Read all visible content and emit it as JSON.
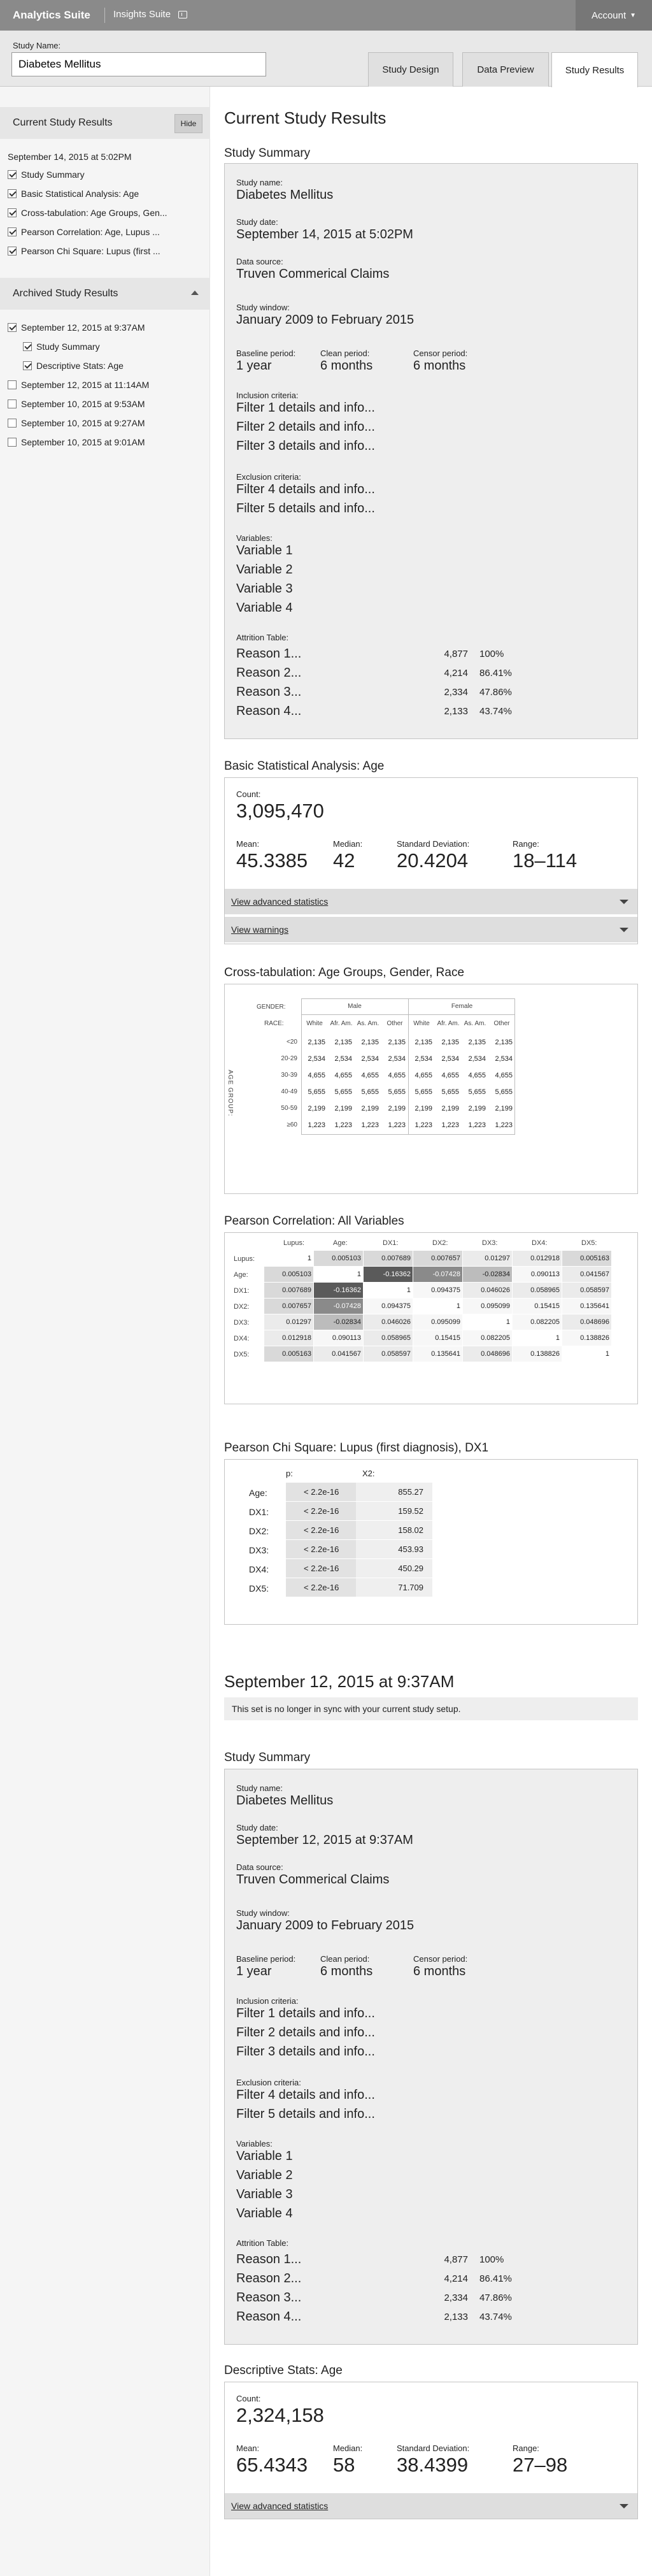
{
  "topbar": {
    "brand": "Analytics Suite",
    "suite": "Insights Suite",
    "account": "Account"
  },
  "study": {
    "label": "Study Name:",
    "value": "Diabetes Mellitus"
  },
  "tabs": [
    "Study Design",
    "Data Preview",
    "Study Results"
  ],
  "sidebar": {
    "current_title": "Current Study Results",
    "hide": "Hide",
    "current_date": "September 14, 2015 at 5:02PM",
    "current_items": [
      "Study Summary",
      "Basic Statistical Analysis: Age",
      "Cross-tabulation: Age Groups, Gen...",
      "Pearson Correlation: Age, Lupus ...",
      "Pearson Chi Square: Lupus (first ..."
    ],
    "archived_title": "Archived Study Results",
    "archived_items": [
      "September 12, 2015 at 9:37AM",
      "Study Summary",
      "Descriptive Stats: Age",
      "September 12, 2015 at 11:14AM",
      "September 10, 2015 at 9:53AM",
      "September 10, 2015 at 9:27AM",
      "September 10, 2015 at 9:01AM"
    ]
  },
  "main": {
    "title": "Current Study Results"
  },
  "summary": {
    "title": "Study Summary",
    "name_label": "Study name:",
    "name": "Diabetes Mellitus",
    "date_label": "Study date:",
    "date": "September 14, 2015 at 5:02PM",
    "source_label": "Data source:",
    "source": "Truven Commerical Claims",
    "window_label": "Study window:",
    "window": "January 2009 to February 2015",
    "baseline_label": "Baseline period:",
    "baseline": "1 year",
    "clean_label": "Clean period:",
    "clean": "6 months",
    "censor_label": "Censor period:",
    "censor": "6 months",
    "inclusion_label": "Inclusion criteria:",
    "inclusion": [
      "Filter 1 details and info...",
      "Filter 2 details and info...",
      "Filter 3 details and info..."
    ],
    "exclusion_label": "Exclusion criteria:",
    "exclusion": [
      "Filter 4 details and info...",
      "Filter 5 details and info..."
    ],
    "variables_label": "Variables:",
    "variables": [
      "Variable 1",
      "Variable 2",
      "Variable 3",
      "Variable 4"
    ],
    "attrition_label": "Attrition Table:",
    "attrition": [
      [
        "Reason 1...",
        "4,877",
        "100%"
      ],
      [
        "Reason 2...",
        "4,214",
        "86.41%"
      ],
      [
        "Reason 3...",
        "2,334",
        "47.86%"
      ],
      [
        "Reason 4...",
        "2,133",
        "43.74%"
      ]
    ]
  },
  "basic": {
    "title": "Basic Statistical Analysis: Age",
    "count_label": "Count:",
    "count": "3,095,470",
    "mean_label": "Mean:",
    "mean": "45.3385",
    "median_label": "Median:",
    "median": "42",
    "sd_label": "Standard Deviation:",
    "sd": "20.4204",
    "range_label": "Range:",
    "range": "18–114",
    "advanced": "View advanced statistics",
    "warnings": "View warnings"
  },
  "xtab": {
    "title": "Cross-tabulation: Age Groups, Gender, Race",
    "gender_label": "GENDER:",
    "race_label": "RACE:",
    "age_label": "AGE GROUP:",
    "genders": [
      "Male",
      "Female"
    ],
    "races": [
      "White",
      "Afr. Am.",
      "As. Am.",
      "Other",
      "White",
      "Afr. Am.",
      "As. Am.",
      "Other"
    ],
    "ages": [
      "<20",
      "20-29",
      "30-39",
      "40-49",
      "50-59",
      "≥60"
    ],
    "values": [
      "2,135",
      "2,534",
      "4,655",
      "5,655",
      "2,199",
      "1,223"
    ]
  },
  "pearson": {
    "title": "Pearson Correlation: All Variables",
    "labels": [
      "Lupus:",
      "Age:",
      "DX1:",
      "DX2:",
      "DX3:",
      "DX4:",
      "DX5:"
    ],
    "matrix": [
      [
        "1",
        "0.005103",
        "0.007689",
        "0.007657",
        "0.01297",
        "0.012918",
        "0.005163"
      ],
      [
        "0.005103",
        "1",
        "-0.16362",
        "-0.07428",
        "-0.02834",
        "0.090113",
        "0.041567"
      ],
      [
        "0.007689",
        "-0.16362",
        "1",
        "0.094375",
        "0.046026",
        "0.058965",
        "0.058597"
      ],
      [
        "0.007657",
        "-0.07428",
        "0.094375",
        "1",
        "0.095099",
        "0.15415",
        "0.135641"
      ],
      [
        "0.01297",
        "-0.02834",
        "0.046026",
        "0.095099",
        "1",
        "0.082205",
        "0.048696"
      ],
      [
        "0.012918",
        "0.090113",
        "0.058965",
        "0.15415",
        "0.082205",
        "1",
        "0.138826"
      ],
      [
        "0.005163",
        "0.041567",
        "0.058597",
        "0.135641",
        "0.048696",
        "0.138826",
        "1"
      ]
    ]
  },
  "chisq": {
    "title": "Pearson Chi Square: Lupus (first diagnosis), DX1",
    "p_label": "p:",
    "x2_label": "X2:",
    "rows": [
      [
        "Age:",
        "< 2.2e-16",
        "855.27"
      ],
      [
        "DX1:",
        "< 2.2e-16",
        "159.52"
      ],
      [
        "DX2:",
        "< 2.2e-16",
        "158.02"
      ],
      [
        "DX3:",
        "< 2.2e-16",
        "453.93"
      ],
      [
        "DX4:",
        "< 2.2e-16",
        "450.29"
      ],
      [
        "DX5:",
        "< 2.2e-16",
        "71.709"
      ]
    ]
  },
  "archived": {
    "title": "September 12, 2015 at 9:37AM",
    "note": "This set is no longer in sync with your current study setup.",
    "summary_title": "Study Summary",
    "desc_title": "Descriptive Stats: Age",
    "count": "2,324,158",
    "mean": "65.4343",
    "median": "58",
    "sd": "38.4399",
    "range": "27–98"
  }
}
